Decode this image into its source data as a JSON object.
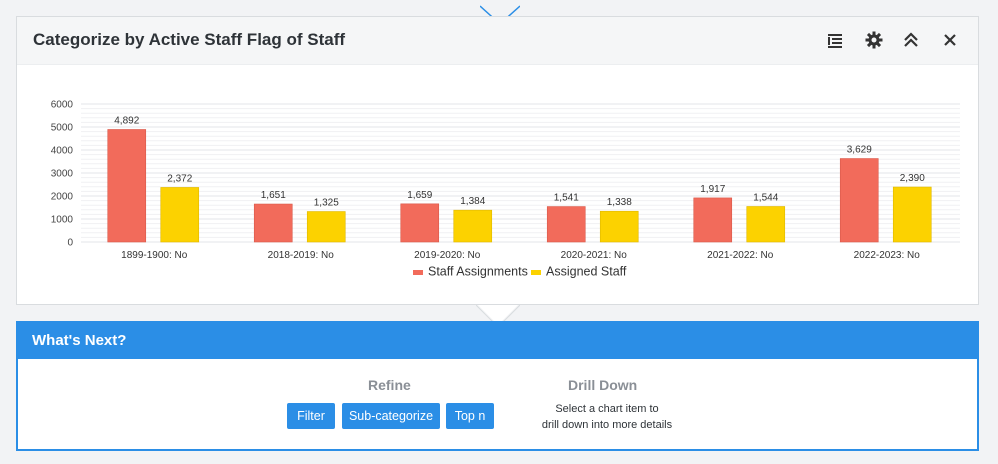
{
  "header": {
    "title": "Categorize by Active Staff Flag of Staff",
    "icons": [
      "list-icon",
      "gear-icon",
      "collapse-icon",
      "close-icon"
    ]
  },
  "chart_data": {
    "type": "bar",
    "categories": [
      "1899-1900: No",
      "2018-2019: No",
      "2019-2020: No",
      "2020-2021: No",
      "2021-2022: No",
      "2022-2023: No"
    ],
    "series": [
      {
        "name": "Staff Assignments",
        "values": [
          4892,
          1651,
          1659,
          1541,
          1917,
          3629
        ],
        "labels": [
          "4,892",
          "1,651",
          "1,659",
          "1,541",
          "1,917",
          "3,629"
        ],
        "color": "#f26b5b"
      },
      {
        "name": "Assigned Staff",
        "values": [
          2372,
          1325,
          1384,
          1338,
          1544,
          2390
        ],
        "labels": [
          "2,372",
          "1,325",
          "1,384",
          "1,338",
          "1,544",
          "2,390"
        ],
        "color": "#fcd200"
      }
    ],
    "yticks": [
      0,
      1000,
      2000,
      3000,
      4000,
      5000,
      6000
    ],
    "ylim": [
      0,
      6000
    ],
    "grid": true,
    "legend": "bottom-center",
    "xlabel": "",
    "ylabel": ""
  },
  "next": {
    "title": "What's Next?",
    "refine": {
      "title": "Refine",
      "buttons": [
        "Filter",
        "Sub-categorize",
        "Top n"
      ]
    },
    "drill": {
      "title": "Drill Down",
      "line1": "Select a chart item to",
      "line2": "drill down into more details"
    }
  },
  "colors": {
    "accent": "#2b8ee6",
    "bar1": "#f26b5b",
    "bar2": "#fcd200"
  }
}
